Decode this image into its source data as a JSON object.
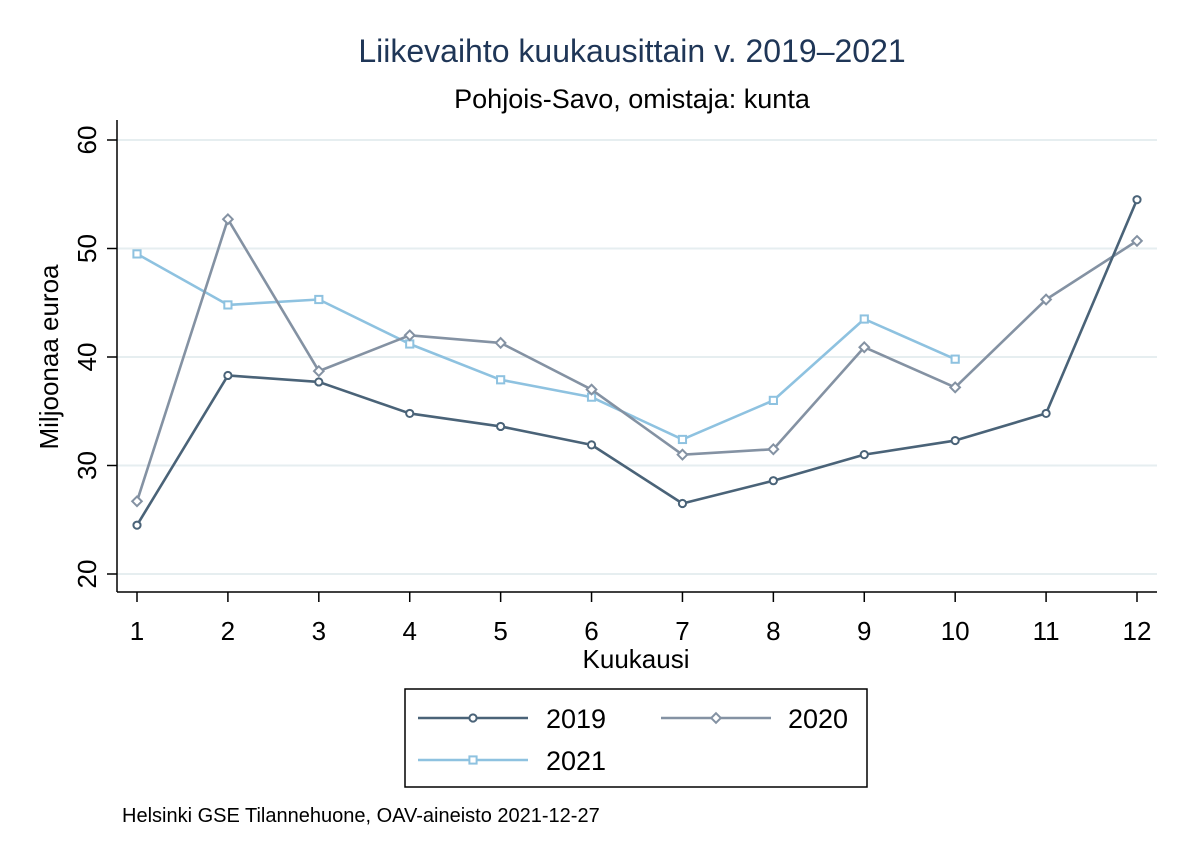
{
  "chart_data": {
    "type": "line",
    "title": "Liikevaihto kuukausittain v. 2019–2021",
    "subtitle": "Pohjois-Savo, omistaja: kunta",
    "xlabel": "Kuukausi",
    "ylabel": "Miljoonaa euroa",
    "note": "Helsinki GSE Tilannehuone, OAV-aineisto 2021-12-27",
    "x": [
      1,
      2,
      3,
      4,
      5,
      6,
      7,
      8,
      9,
      10,
      11,
      12
    ],
    "x_ticks": [
      "1",
      "2",
      "3",
      "4",
      "5",
      "6",
      "7",
      "8",
      "9",
      "10",
      "11",
      "12"
    ],
    "xlim": [
      1,
      12
    ],
    "y_ticks": [
      20,
      30,
      40,
      50,
      60
    ],
    "ylim": [
      20,
      60
    ],
    "grid": true,
    "legend_position": "bottom",
    "series": [
      {
        "name": "2019",
        "color": "#4a6378",
        "marker": "circle",
        "values": [
          24.5,
          38.3,
          37.7,
          34.8,
          33.6,
          31.9,
          26.5,
          28.6,
          31.0,
          32.3,
          34.8,
          54.5
        ]
      },
      {
        "name": "2020",
        "color": "#8492a3",
        "marker": "diamond",
        "values": [
          26.7,
          52.7,
          38.7,
          42.0,
          41.3,
          37.0,
          31.0,
          31.5,
          40.9,
          37.2,
          45.3,
          50.7
        ]
      },
      {
        "name": "2021",
        "color": "#8ec2e0",
        "marker": "square",
        "values": [
          49.5,
          44.8,
          45.3,
          41.2,
          37.9,
          36.3,
          32.4,
          36.0,
          43.5,
          39.8,
          null,
          null
        ]
      }
    ]
  }
}
